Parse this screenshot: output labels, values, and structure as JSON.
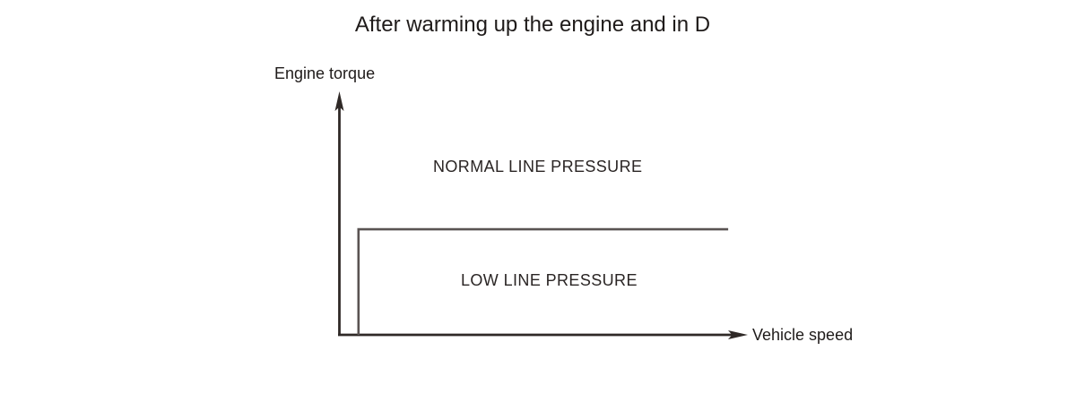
{
  "title": "After warming up the engine and in D",
  "labels": {
    "y_axis": "Engine torque",
    "x_axis": "Vehicle speed",
    "normal_region": "NORMAL LINE PRESSURE",
    "low_region": "LOW LINE PRESSURE"
  },
  "colors": {
    "background": "#ffffff",
    "text": "#1f1b1a",
    "axis": "#2f2927",
    "step_line": "#5a5352"
  },
  "chart_data": {
    "type": "line",
    "title": "After warming up the engine and in D",
    "xlabel": "Vehicle speed",
    "ylabel": "Engine torque",
    "grid": false,
    "legend": "none",
    "axes_numeric": false,
    "tick_labels": [],
    "series": [
      {
        "name": "line-pressure-threshold",
        "style": "step",
        "description": "Threshold boundary: region above/left of step is NORMAL LINE PRESSURE, region below the step is LOW LINE PRESSURE",
        "points_fraction": [
          [
            0.048,
            0.0
          ],
          [
            0.048,
            0.435
          ],
          [
            0.954,
            0.435
          ]
        ]
      }
    ],
    "annotations": [
      {
        "label": "NORMAL LINE PRESSURE",
        "region": "above-step"
      },
      {
        "label": "LOW LINE PRESSURE",
        "region": "below-step"
      }
    ]
  }
}
